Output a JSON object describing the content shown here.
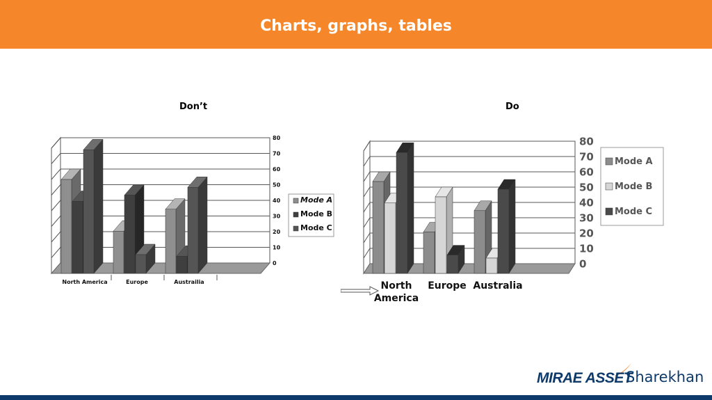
{
  "header": {
    "title": "Charts, graphs, tables"
  },
  "captions": {
    "dont": "Don’t",
    "do": "Do"
  },
  "brand": {
    "part1": "MIRAE ASSET",
    "part2": "Sharekhan",
    "accent": "#f5862a",
    "navy": "#0e3a6b"
  },
  "chart_data": [
    {
      "type": "bar",
      "categories": [
        "North America",
        "Europe",
        "Austrailia"
      ],
      "series": [
        {
          "name": "Mode A",
          "values": [
            60,
            27,
            41
          ]
        },
        {
          "name": "Mode B",
          "values": [
            46,
            50,
            11
          ]
        },
        {
          "name": "Mode C",
          "values": [
            79,
            12,
            55
          ]
        }
      ],
      "ylim": [
        0,
        80
      ],
      "yticks": [
        0,
        10,
        20,
        30,
        40,
        50,
        60,
        70,
        80
      ],
      "legend": "right",
      "grid": true
    },
    {
      "type": "bar",
      "categories": [
        "North America",
        "Europe",
        "Australia"
      ],
      "series": [
        {
          "name": "Mode A",
          "values": [
            60,
            27,
            41
          ]
        },
        {
          "name": "Mode B",
          "values": [
            46,
            50,
            10
          ]
        },
        {
          "name": "Mode C",
          "values": [
            79,
            12,
            55
          ]
        }
      ],
      "ylim": [
        0,
        80
      ],
      "yticks": [
        0,
        10,
        20,
        30,
        40,
        50,
        60,
        70,
        80
      ],
      "legend": "right",
      "grid": true
    }
  ]
}
